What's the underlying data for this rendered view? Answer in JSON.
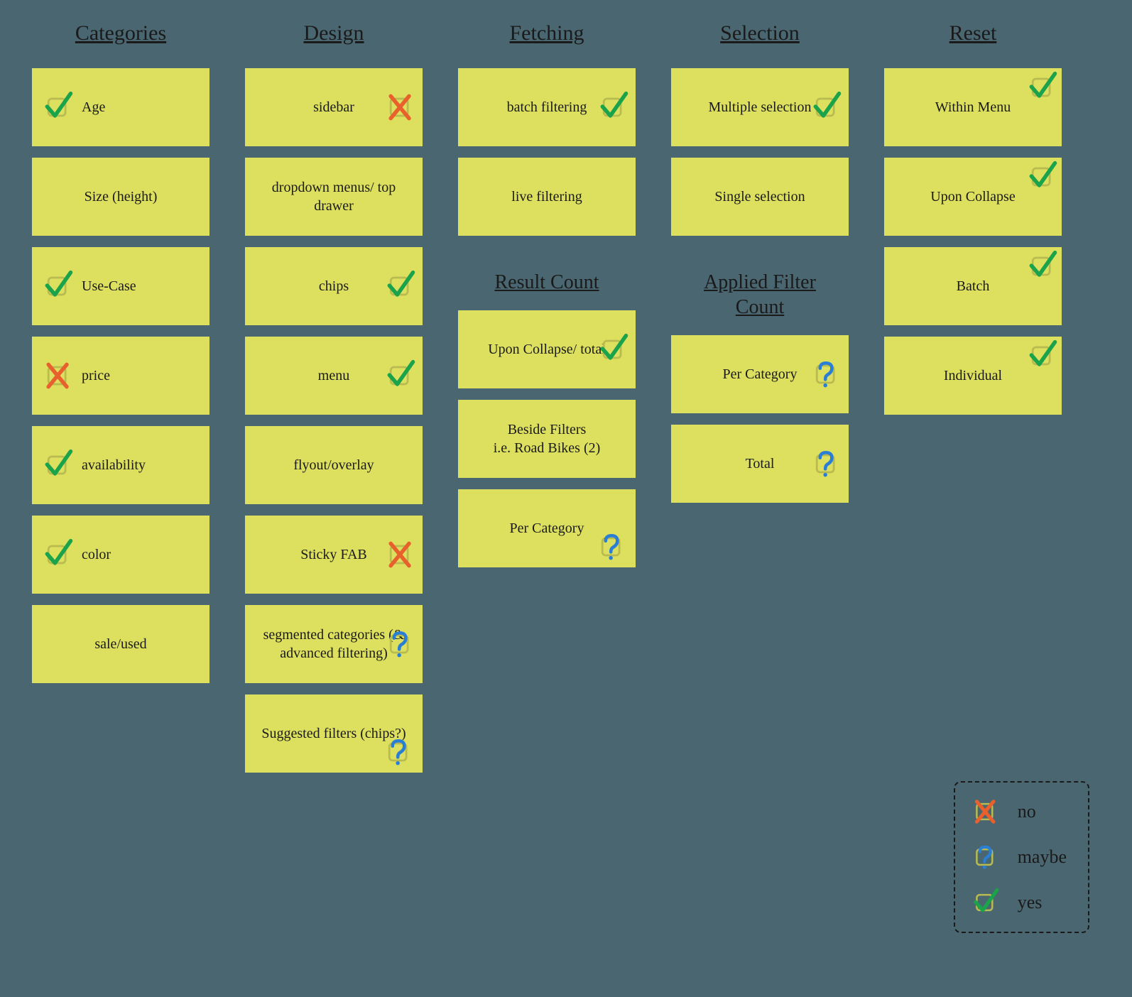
{
  "colors": {
    "background": "#4a6670",
    "card": "#dde05f",
    "text": "#1a1a1a",
    "mark_yes": "#1aa34a",
    "mark_no": "#e8602c",
    "mark_maybe": "#2a7fd4",
    "checkbox_outline": "#b8bb50"
  },
  "columns": [
    {
      "heading": "Categories",
      "cards": [
        {
          "label": "Age",
          "mark": "yes",
          "mark_pos": "left"
        },
        {
          "label": "Size (height)",
          "mark": null
        },
        {
          "label": "Use-Case",
          "mark": "yes",
          "mark_pos": "left"
        },
        {
          "label": "price",
          "mark": "no",
          "mark_pos": "left"
        },
        {
          "label": "availability",
          "mark": "yes",
          "mark_pos": "left"
        },
        {
          "label": "color",
          "mark": "yes",
          "mark_pos": "left"
        },
        {
          "label": "sale/used",
          "mark": null
        }
      ]
    },
    {
      "heading": "Design",
      "cards": [
        {
          "label": "sidebar",
          "mark": "no",
          "mark_pos": "right"
        },
        {
          "label": "dropdown menus/ top drawer",
          "mark": null
        },
        {
          "label": "chips",
          "mark": "yes",
          "mark_pos": "right"
        },
        {
          "label": "menu",
          "mark": "yes",
          "mark_pos": "right"
        },
        {
          "label": "flyout/overlay",
          "mark": null
        },
        {
          "label": "Sticky FAB",
          "mark": "no",
          "mark_pos": "right"
        },
        {
          "label": "segmented categories (& advanced filtering)",
          "mark": "maybe",
          "mark_pos": "right"
        },
        {
          "label": "Suggested filters (chips?)",
          "mark": "maybe",
          "mark_pos": "bottomright"
        }
      ]
    },
    {
      "heading": "Fetching",
      "cards": [
        {
          "label": "batch filtering",
          "mark": "yes",
          "mark_pos": "right"
        },
        {
          "label": "live filtering",
          "mark": null
        }
      ],
      "sub": {
        "heading": "Result Count",
        "cards": [
          {
            "label": "Upon Collapse/ total",
            "mark": "yes",
            "mark_pos": "right"
          },
          {
            "label": "Beside Filters\ni.e. Road Bikes (2)",
            "mark": null
          },
          {
            "label": "Per Category",
            "mark": "maybe",
            "mark_pos": "bottomright"
          }
        ]
      }
    },
    {
      "heading": "Selection",
      "cards": [
        {
          "label": "Multiple selection",
          "mark": "yes",
          "mark_pos": "right"
        },
        {
          "label": "Single selection",
          "mark": null
        }
      ],
      "sub": {
        "heading": "Applied Filter\nCount",
        "cards": [
          {
            "label": "Per Category",
            "mark": "maybe",
            "mark_pos": "right"
          },
          {
            "label": "Total",
            "mark": "maybe",
            "mark_pos": "right"
          }
        ]
      }
    },
    {
      "heading": "Reset",
      "cards": [
        {
          "label": "Within Menu",
          "mark": "yes",
          "mark_pos": "rightcorner"
        },
        {
          "label": "Upon Collapse",
          "mark": "yes",
          "mark_pos": "rightcorner"
        },
        {
          "label": "Batch",
          "mark": "yes",
          "mark_pos": "rightcorner"
        },
        {
          "label": "Individual",
          "mark": "yes",
          "mark_pos": "rightcorner"
        }
      ]
    }
  ],
  "legend": {
    "no": "no",
    "maybe": "maybe",
    "yes": "yes"
  }
}
